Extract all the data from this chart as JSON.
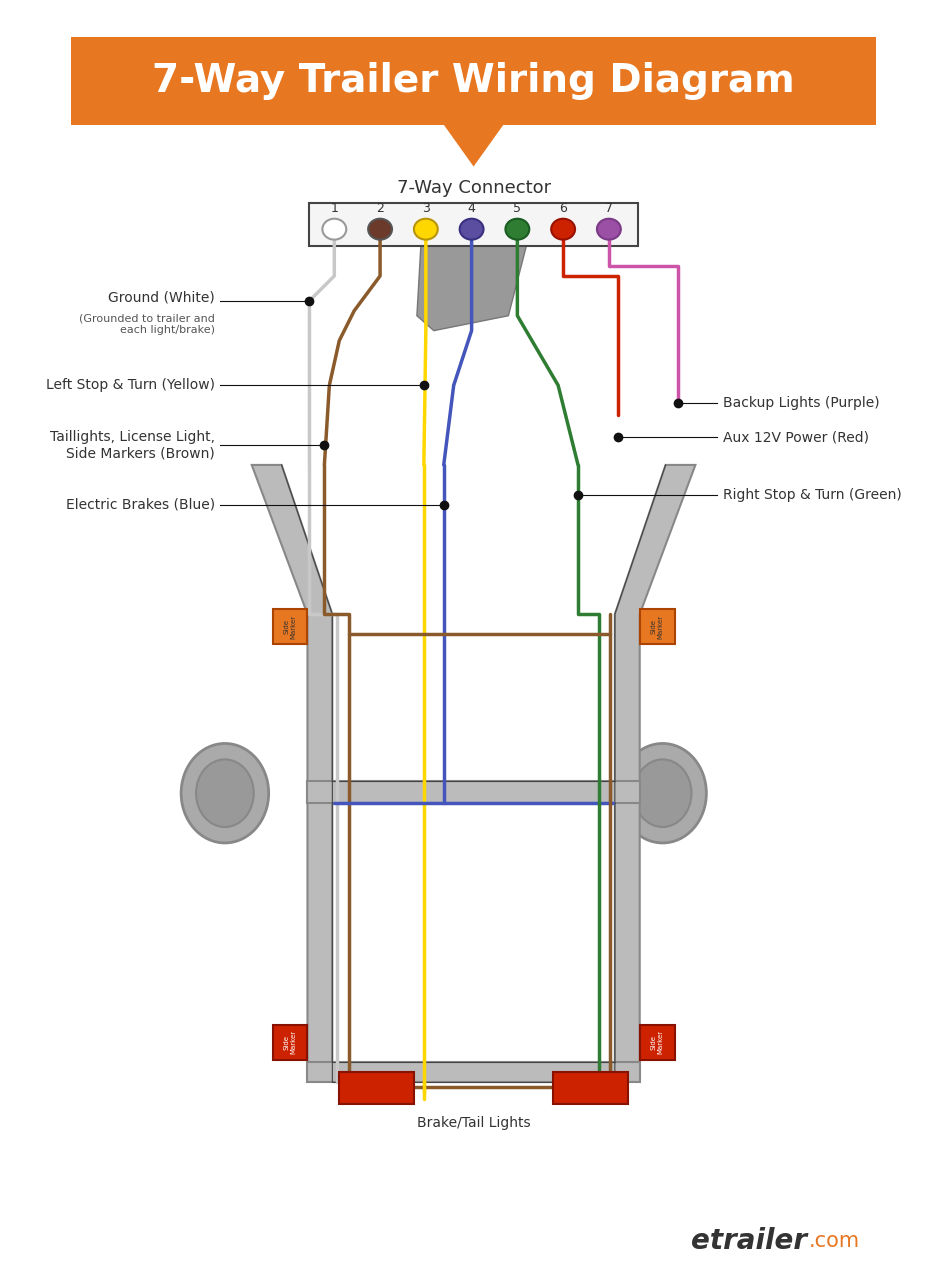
{
  "title": "7-Way Trailer Wiring Diagram",
  "title_color": "#FFFFFF",
  "title_bg_color": "#E87722",
  "bg_color": "#FFFFFF",
  "connector_label": "7-Way Connector",
  "pin_numbers": [
    "1",
    "2",
    "3",
    "4",
    "5",
    "6",
    "7"
  ],
  "pin_colors": [
    "#FFFFFF",
    "#6B3A2A",
    "#FFD700",
    "#5B4EA0",
    "#2E7D32",
    "#CC2200",
    "#9B4FA5"
  ],
  "pin_outline_colors": [
    "#999999",
    "#555555",
    "#B8940A",
    "#3A3080",
    "#1A5C22",
    "#991100",
    "#7A3A85"
  ],
  "wire_colors": {
    "white": "#C8C8C8",
    "brown": "#8B5A2B",
    "yellow": "#FFD700",
    "blue": "#4455BB",
    "green": "#2E7D32",
    "red": "#CC2200",
    "purple": "#CC55AA"
  },
  "label_dot_color": "#111111",
  "label_text_color": "#333333",
  "frame_fill": "#BBBBBB",
  "frame_edge": "#888888",
  "frame_inner_edge": "#444444",
  "wheel_outer_fill": "#AAAAAA",
  "wheel_inner_fill": "#999999",
  "side_marker_orange": "#E87722",
  "side_marker_red": "#CC2200",
  "brake_light_red": "#CC2200",
  "plug_fill": "#999999",
  "plug_edge": "#777777",
  "conn_fill": "#F5F5F5",
  "conn_edge": "#444444",
  "footer_text_color": "#333333",
  "footer_dot_color": "#E87722"
}
